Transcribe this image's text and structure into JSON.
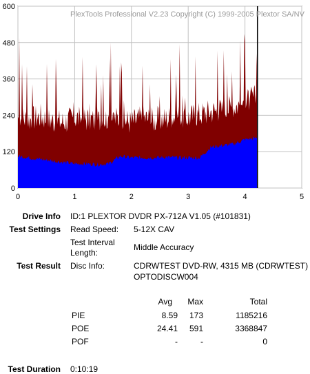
{
  "window": {
    "watermark": "PlexTools Professional V2.23 Copyright (C) 1999-2005 Plextor SA/NV"
  },
  "chart_data": {
    "type": "area",
    "xlim": [
      0,
      5
    ],
    "ylim": [
      0,
      600
    ],
    "x_ticks": [
      "0",
      "1",
      "2",
      "3",
      "4",
      "5"
    ],
    "y_ticks": [
      "0",
      "120",
      "240",
      "360",
      "480",
      "600"
    ],
    "x_end": 4.22,
    "grid": true,
    "series": [
      {
        "color": "#800000",
        "x": [
          0.0,
          0.2,
          0.4,
          0.6,
          0.8,
          1.0,
          1.2,
          1.4,
          1.6,
          1.8,
          2.0,
          2.2,
          2.4,
          2.6,
          2.8,
          3.0,
          3.2,
          3.4,
          3.6,
          3.8,
          4.0,
          4.22
        ],
        "values": [
          230,
          225,
          235,
          220,
          215,
          230,
          225,
          220,
          230,
          225,
          215,
          230,
          220,
          225,
          235,
          230,
          240,
          250,
          255,
          265,
          280,
          300
        ]
      },
      {
        "color": "#0000ff",
        "x": [
          0.0,
          0.2,
          0.4,
          0.6,
          0.8,
          1.0,
          1.2,
          1.4,
          1.6,
          1.8,
          2.0,
          2.2,
          2.4,
          2.6,
          2.8,
          3.0,
          3.2,
          3.4,
          3.6,
          3.8,
          4.0,
          4.22
        ],
        "values": [
          105,
          100,
          95,
          90,
          85,
          80,
          80,
          78,
          80,
          105,
          100,
          100,
          100,
          102,
          100,
          100,
          100,
          135,
          140,
          145,
          160,
          165
        ]
      }
    ]
  },
  "info": {
    "drive_info_label": "Drive Info",
    "drive_info_value": "ID:1 PLEXTOR DVDR  PX-712A  V1.05 (#101831)",
    "test_settings_label": "Test Settings",
    "read_speed_label": "Read Speed:",
    "read_speed_value": "5-12X CAV",
    "interval_label_1": "Test Interval",
    "interval_label_2": "Length:",
    "interval_value": "Middle Accuracy",
    "test_result_label": "Test Result",
    "disc_info_label": "Disc Info:",
    "disc_info_value_1": "CDRWTEST DVD-RW, 4315 MB (CDRWTEST)",
    "disc_info_value_2": "OPTODISCW004",
    "test_duration_label": "Test Duration",
    "test_duration_value": "0:10:19"
  },
  "stats": {
    "headers": {
      "avg": "Avg",
      "max": "Max",
      "total": "Total"
    },
    "rows": [
      {
        "name": "PIE",
        "avg": "8.59",
        "max": "173",
        "total": "1185216"
      },
      {
        "name": "POE",
        "avg": "24.41",
        "max": "591",
        "total": "3368847"
      },
      {
        "name": "POF",
        "avg": "-",
        "max": "-",
        "total": "0"
      }
    ]
  }
}
